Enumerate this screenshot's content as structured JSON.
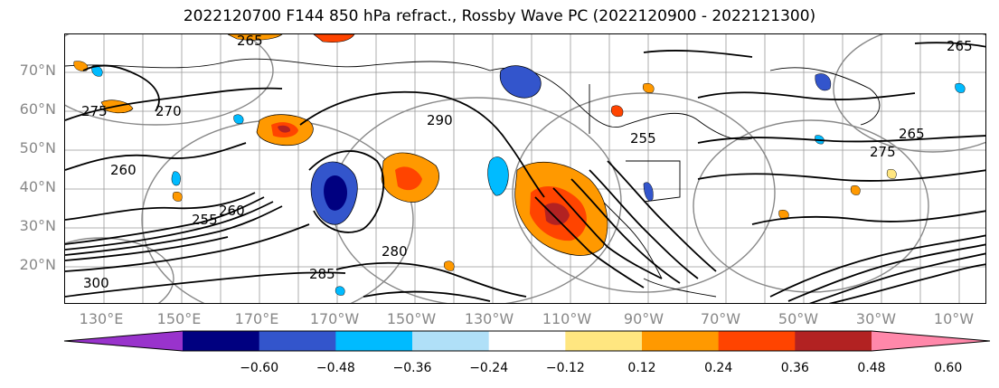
{
  "title": "2022120700 F144 850 hPa refract., Rossby Wave PC (2022120900 - 2022121300)",
  "lat_labels": [
    "70°N",
    "60°N",
    "50°N",
    "40°N",
    "30°N",
    "20°N"
  ],
  "lon_labels": [
    "130°E",
    "150°E",
    "170°E",
    "170°W",
    "150°W",
    "130°W",
    "110°W",
    "90°W",
    "70°W",
    "50°W",
    "30°W",
    "10°W"
  ],
  "contour_labels": [
    "265",
    "265",
    "265",
    "270",
    "275",
    "260",
    "255",
    "260",
    "280",
    "290",
    "300",
    "285",
    "255",
    "275"
  ],
  "colorbar": {
    "ticks": [
      "−0.60",
      "−0.48",
      "−0.36",
      "−0.24",
      "−0.12",
      "0.12",
      "0.24",
      "0.36",
      "0.48",
      "0.60"
    ],
    "colors": [
      "#9933cc",
      "#000080",
      "#3355cc",
      "#00bbff",
      "#b0e0f8",
      "#ffffff",
      "#ffe680",
      "#ff9900",
      "#ff4400",
      "#b22222",
      "#ff88aa"
    ]
  }
}
